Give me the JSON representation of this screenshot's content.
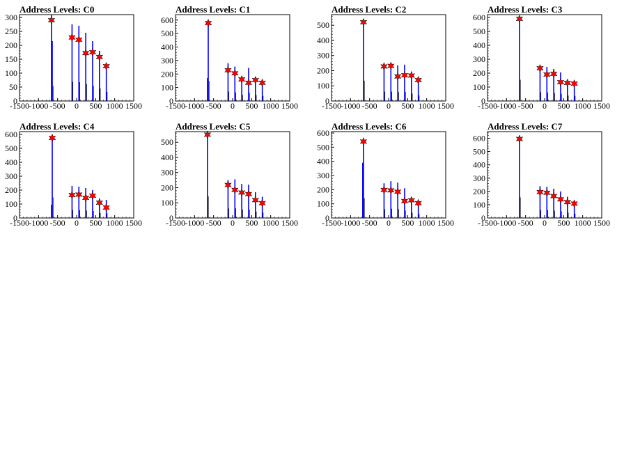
{
  "chart_data": [
    {
      "type": "bar",
      "title": "Address Levels: C0",
      "ylim": [
        0,
        310
      ],
      "xlim": [
        -1500,
        1500
      ],
      "yticks": [
        0,
        50,
        100,
        150,
        200,
        250,
        300
      ],
      "xticks": [
        -1500,
        -1000,
        -500,
        0,
        500,
        1000,
        1500
      ],
      "bars": [
        {
          "x": -660,
          "y": 310
        },
        {
          "x": -640,
          "y": 215
        },
        {
          "x": -120,
          "y": 275
        },
        {
          "x": 60,
          "y": 270
        },
        {
          "x": 240,
          "y": 245
        },
        {
          "x": 420,
          "y": 215
        },
        {
          "x": 600,
          "y": 180
        },
        {
          "x": 780,
          "y": 130
        }
      ],
      "peaks": [
        {
          "x": -660,
          "y": 290
        },
        {
          "x": -120,
          "y": 228
        },
        {
          "x": 60,
          "y": 220
        },
        {
          "x": 240,
          "y": 172
        },
        {
          "x": 420,
          "y": 175
        },
        {
          "x": 600,
          "y": 158
        },
        {
          "x": 780,
          "y": 125
        }
      ]
    },
    {
      "type": "bar",
      "title": "Address Levels: C1",
      "ylim": [
        0,
        640
      ],
      "xlim": [
        -1500,
        1500
      ],
      "yticks": [
        0,
        100,
        200,
        300,
        400,
        500,
        600
      ],
      "xticks": [
        -1500,
        -1000,
        -500,
        0,
        500,
        1000,
        1500
      ],
      "bars": [
        {
          "x": -660,
          "y": 170
        },
        {
          "x": -640,
          "y": 590
        },
        {
          "x": -120,
          "y": 280
        },
        {
          "x": 60,
          "y": 255
        },
        {
          "x": 240,
          "y": 180
        },
        {
          "x": 420,
          "y": 245
        },
        {
          "x": 600,
          "y": 175
        },
        {
          "x": 780,
          "y": 150
        }
      ],
      "peaks": [
        {
          "x": -640,
          "y": 578
        },
        {
          "x": -120,
          "y": 228
        },
        {
          "x": 60,
          "y": 205
        },
        {
          "x": 240,
          "y": 160
        },
        {
          "x": 420,
          "y": 135
        },
        {
          "x": 600,
          "y": 155
        },
        {
          "x": 780,
          "y": 135
        }
      ]
    },
    {
      "type": "bar",
      "title": "Address Levels: C2",
      "ylim": [
        0,
        570
      ],
      "xlim": [
        -1500,
        1500
      ],
      "yticks": [
        0,
        100,
        200,
        300,
        400,
        500
      ],
      "xticks": [
        -1500,
        -1000,
        -500,
        0,
        500,
        1000,
        1500
      ],
      "bars": [
        {
          "x": -660,
          "y": 535
        },
        {
          "x": -120,
          "y": 245
        },
        {
          "x": 60,
          "y": 245
        },
        {
          "x": 240,
          "y": 235
        },
        {
          "x": 420,
          "y": 240
        },
        {
          "x": 600,
          "y": 195
        },
        {
          "x": 780,
          "y": 150
        }
      ],
      "peaks": [
        {
          "x": -660,
          "y": 520
        },
        {
          "x": -120,
          "y": 228
        },
        {
          "x": 60,
          "y": 232
        },
        {
          "x": 240,
          "y": 162
        },
        {
          "x": 420,
          "y": 170
        },
        {
          "x": 600,
          "y": 168
        },
        {
          "x": 780,
          "y": 138
        }
      ]
    },
    {
      "type": "bar",
      "title": "Address Levels: C3",
      "ylim": [
        0,
        620
      ],
      "xlim": [
        -1500,
        1500
      ],
      "yticks": [
        0,
        100,
        200,
        300,
        400,
        500,
        600
      ],
      "xticks": [
        -1500,
        -1000,
        -500,
        0,
        500,
        1000,
        1500
      ],
      "bars": [
        {
          "x": -660,
          "y": 610
        },
        {
          "x": -120,
          "y": 250
        },
        {
          "x": 60,
          "y": 245
        },
        {
          "x": 240,
          "y": 230
        },
        {
          "x": 420,
          "y": 205
        },
        {
          "x": 600,
          "y": 155
        },
        {
          "x": 780,
          "y": 145
        }
      ],
      "peaks": [
        {
          "x": -660,
          "y": 590
        },
        {
          "x": -120,
          "y": 235
        },
        {
          "x": 60,
          "y": 190
        },
        {
          "x": 240,
          "y": 195
        },
        {
          "x": 420,
          "y": 135
        },
        {
          "x": 600,
          "y": 130
        },
        {
          "x": 780,
          "y": 125
        }
      ]
    },
    {
      "type": "bar",
      "title": "Address Levels: C4",
      "ylim": [
        0,
        620
      ],
      "xlim": [
        -1500,
        1500
      ],
      "yticks": [
        0,
        100,
        200,
        300,
        400,
        500,
        600
      ],
      "xticks": [
        -1500,
        -1000,
        -500,
        0,
        500,
        1000,
        1500
      ],
      "bars": [
        {
          "x": -660,
          "y": 95
        },
        {
          "x": -640,
          "y": 590
        },
        {
          "x": -120,
          "y": 230
        },
        {
          "x": 60,
          "y": 225
        },
        {
          "x": 240,
          "y": 215
        },
        {
          "x": 420,
          "y": 200
        },
        {
          "x": 600,
          "y": 140
        },
        {
          "x": 780,
          "y": 130
        }
      ],
      "peaks": [
        {
          "x": -640,
          "y": 575
        },
        {
          "x": -120,
          "y": 165
        },
        {
          "x": 60,
          "y": 168
        },
        {
          "x": 240,
          "y": 145
        },
        {
          "x": 420,
          "y": 160
        },
        {
          "x": 600,
          "y": 110
        },
        {
          "x": 780,
          "y": 75
        }
      ]
    },
    {
      "type": "bar",
      "title": "Address Levels: C5",
      "ylim": [
        0,
        570
      ],
      "xlim": [
        -1500,
        1500
      ],
      "yticks": [
        0,
        100,
        200,
        300,
        400,
        500
      ],
      "xticks": [
        -1500,
        -1000,
        -500,
        0,
        500,
        1000,
        1500
      ],
      "bars": [
        {
          "x": -660,
          "y": 570
        },
        {
          "x": -120,
          "y": 250
        },
        {
          "x": 60,
          "y": 255
        },
        {
          "x": 240,
          "y": 225
        },
        {
          "x": 420,
          "y": 220
        },
        {
          "x": 600,
          "y": 170
        },
        {
          "x": 780,
          "y": 140
        }
      ],
      "peaks": [
        {
          "x": -660,
          "y": 550
        },
        {
          "x": -120,
          "y": 218
        },
        {
          "x": 60,
          "y": 185
        },
        {
          "x": 240,
          "y": 168
        },
        {
          "x": 420,
          "y": 158
        },
        {
          "x": 600,
          "y": 118
        },
        {
          "x": 780,
          "y": 98
        }
      ]
    },
    {
      "type": "bar",
      "title": "Address Levels: C6",
      "ylim": [
        0,
        610
      ],
      "xlim": [
        -1500,
        1500
      ],
      "yticks": [
        0,
        100,
        200,
        300,
        400,
        500,
        600
      ],
      "xticks": [
        -1500,
        -1000,
        -500,
        0,
        500,
        1000,
        1500
      ],
      "bars": [
        {
          "x": -680,
          "y": 390
        },
        {
          "x": -660,
          "y": 560
        },
        {
          "x": -120,
          "y": 245
        },
        {
          "x": 60,
          "y": 260
        },
        {
          "x": 240,
          "y": 250
        },
        {
          "x": 420,
          "y": 210
        },
        {
          "x": 600,
          "y": 145
        },
        {
          "x": 780,
          "y": 120
        }
      ],
      "peaks": [
        {
          "x": -660,
          "y": 540
        },
        {
          "x": -120,
          "y": 198
        },
        {
          "x": 60,
          "y": 195
        },
        {
          "x": 240,
          "y": 185
        },
        {
          "x": 420,
          "y": 120
        },
        {
          "x": 600,
          "y": 125
        },
        {
          "x": 780,
          "y": 105
        }
      ]
    },
    {
      "type": "bar",
      "title": "Address Levels: C7",
      "ylim": [
        0,
        650
      ],
      "xlim": [
        -1500,
        1500
      ],
      "yticks": [
        0,
        100,
        200,
        300,
        400,
        500,
        600
      ],
      "xticks": [
        -1500,
        -1000,
        -500,
        0,
        500,
        1000,
        1500
      ],
      "bars": [
        {
          "x": -660,
          "y": 620
        },
        {
          "x": -120,
          "y": 240
        },
        {
          "x": 60,
          "y": 235
        },
        {
          "x": 240,
          "y": 220
        },
        {
          "x": 420,
          "y": 200
        },
        {
          "x": 600,
          "y": 160
        },
        {
          "x": 780,
          "y": 130
        }
      ],
      "peaks": [
        {
          "x": -660,
          "y": 595
        },
        {
          "x": -120,
          "y": 195
        },
        {
          "x": 60,
          "y": 190
        },
        {
          "x": 240,
          "y": 165
        },
        {
          "x": 420,
          "y": 140
        },
        {
          "x": 600,
          "y": 120
        },
        {
          "x": 780,
          "y": 108
        }
      ]
    }
  ]
}
